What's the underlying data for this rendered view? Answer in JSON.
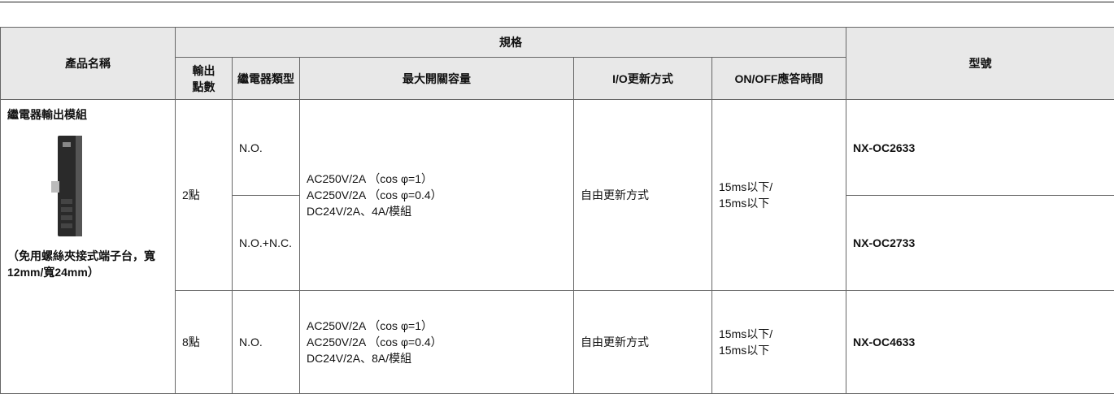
{
  "header": {
    "product_name": "產品名稱",
    "spec": "規格",
    "model": "型號",
    "columns": [
      "輸出點數",
      "繼電器類型",
      "最大開關容量",
      "I/O更新方式",
      "ON/OFF應答時間"
    ]
  },
  "product": {
    "name": "繼電器輸出模組",
    "note": "（免用螺絲夾接式端子台，寬12mm/寬24mm）"
  },
  "rows": [
    {
      "points": "2點",
      "relay_type": "N.O.",
      "capacity": [
        "AC250V/2A （cos φ=1）",
        "AC250V/2A （cos φ=0.4）",
        "DC24V/2A、4A/模組"
      ],
      "io_update": "自由更新方式",
      "response": [
        "15ms以下/",
        "15ms以下"
      ],
      "model": "NX-OC2633"
    },
    {
      "relay_type": "N.O.+N.C.",
      "model": "NX-OC2733"
    },
    {
      "points": "8點",
      "relay_type": "N.O.",
      "capacity": [
        "AC250V/2A （cos φ=1）",
        "AC250V/2A （cos φ=0.4）",
        "DC24V/2A、8A/模組"
      ],
      "io_update": "自由更新方式",
      "response": [
        "15ms以下/",
        "15ms以下"
      ],
      "model": "NX-OC4633"
    }
  ]
}
